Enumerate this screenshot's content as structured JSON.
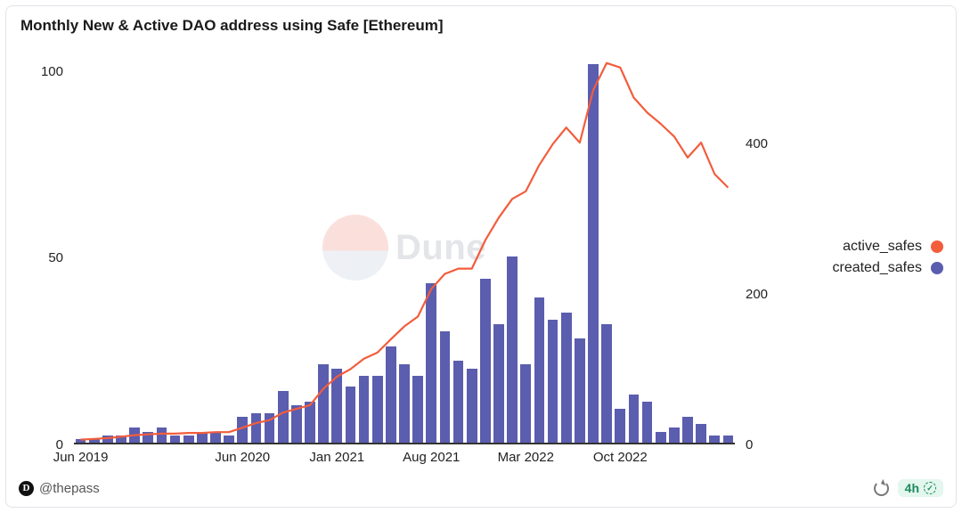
{
  "title": "Monthly New & Active DAO address using Safe [Ethereum]",
  "author_handle": "@thepass",
  "refresh_label": "4h",
  "watermark_text": "Dune",
  "legend": [
    {
      "label": "active_safes",
      "color": "#f25d3c",
      "key": "line"
    },
    {
      "label": "created_safes",
      "color": "#5b5dae",
      "key": "bar"
    }
  ],
  "chart": {
    "type": "bar+line",
    "background_color": "#ffffff",
    "bar_color": "#5b5dae",
    "line_color": "#f25d3c",
    "line_width": 2.2,
    "bar_gap_ratio": 0.22,
    "axis_color": "#333333",
    "axis_fontsize": 15,
    "left_axis": {
      "label": "",
      "min": 0,
      "max": 105,
      "ticks": [
        0,
        50,
        100
      ]
    },
    "right_axis": {
      "label": "",
      "min": 0,
      "max": 520,
      "ticks": [
        0,
        200,
        400
      ]
    },
    "x_labels": [
      {
        "index": 0,
        "text": "Jun 2019"
      },
      {
        "index": 12,
        "text": "Jun 2020"
      },
      {
        "index": 19,
        "text": "Jan 2021"
      },
      {
        "index": 26,
        "text": "Aug 2021"
      },
      {
        "index": 33,
        "text": "Mar 2022"
      },
      {
        "index": 40,
        "text": "Oct 2022"
      }
    ],
    "bars_values": [
      1,
      1,
      2,
      2,
      4,
      3,
      4,
      2,
      2,
      3,
      3,
      2,
      7,
      8,
      8,
      14,
      10,
      11,
      21,
      20,
      15,
      18,
      18,
      26,
      21,
      18,
      43,
      30,
      22,
      20,
      44,
      32,
      50,
      21,
      39,
      33,
      35,
      28,
      102,
      32,
      9,
      13,
      11,
      3,
      4,
      7,
      5,
      2,
      2
    ],
    "line_values": [
      4,
      5,
      6,
      8,
      10,
      11,
      12,
      12,
      13,
      13,
      14,
      14,
      20,
      26,
      30,
      40,
      45,
      50,
      72,
      88,
      98,
      112,
      120,
      138,
      155,
      168,
      205,
      225,
      232,
      232,
      270,
      300,
      325,
      335,
      370,
      398,
      420,
      400,
      470,
      506,
      500,
      460,
      440,
      425,
      408,
      380,
      400,
      358,
      340
    ]
  }
}
